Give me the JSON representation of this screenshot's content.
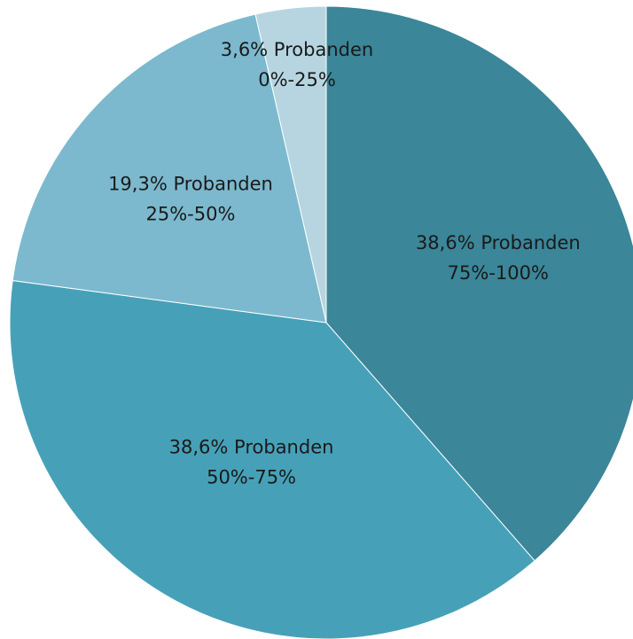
{
  "chart_data": {
    "type": "pie",
    "start_angle_deg": 0,
    "direction": "clockwise",
    "legend": "none",
    "slices": [
      {
        "percent_label": "38,6% Probanden",
        "category": "75%-100%",
        "value": 38.6,
        "color": "#3b8699"
      },
      {
        "percent_label": "38,6% Probanden",
        "category": "50%-75%",
        "value": 38.6,
        "color": "#46a1b8"
      },
      {
        "percent_label": "19,3% Probanden",
        "category": "25%-50%",
        "value": 19.3,
        "color": "#7cb9ce"
      },
      {
        "percent_label": "3,6% Probanden",
        "category": "0%-25%",
        "value": 3.6,
        "color": "#b6d5e1"
      }
    ]
  }
}
